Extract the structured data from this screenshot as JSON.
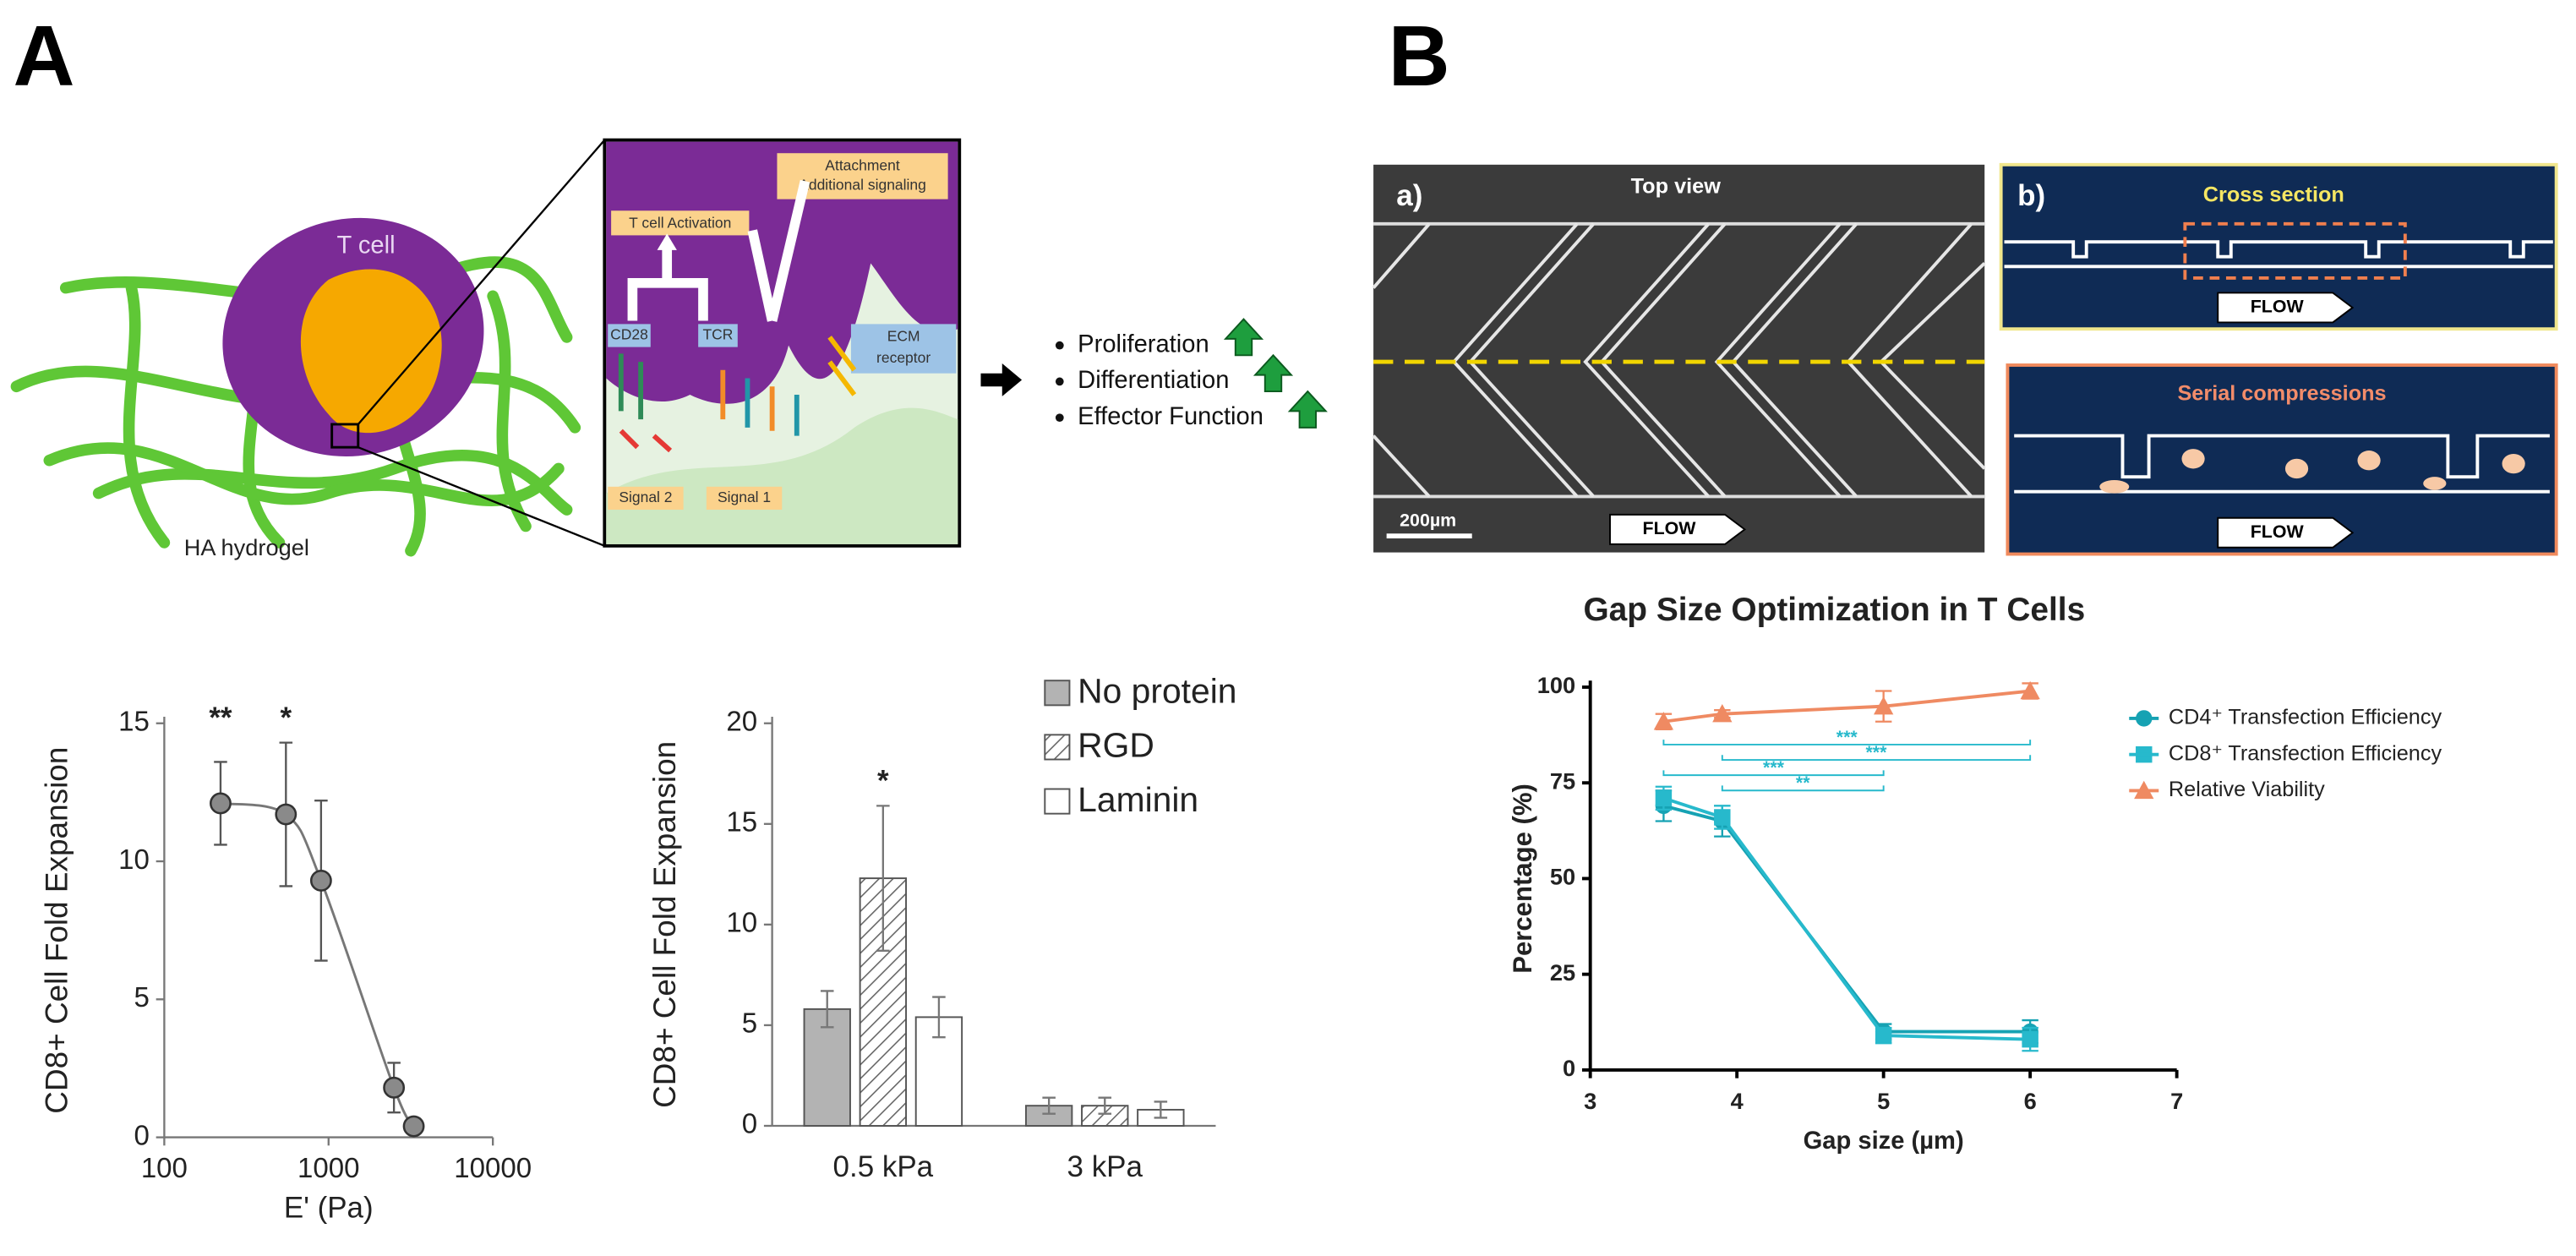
{
  "panel_labels": [
    "A",
    "B"
  ],
  "diagram_a": {
    "cell": "T cell",
    "gel": "HA hydrogel",
    "inset": {
      "attachment": [
        "Attachment",
        "Additional signaling"
      ],
      "activation": "T cell Activation",
      "cd28": "CD28",
      "tcr": "TCR",
      "ecm": [
        "ECM",
        "receptor"
      ],
      "signal2": "Signal 2",
      "signal1": "Signal 1"
    },
    "outcomes": [
      "Proliferation",
      "Differentiation",
      "Effector Function"
    ]
  },
  "diagram_b": {
    "top": {
      "label": "a)",
      "title": "Top view",
      "scale": "200µm",
      "flow": "FLOW"
    },
    "cross": {
      "label": "b)",
      "title": "Cross section",
      "flow": "FLOW"
    },
    "serial": {
      "title": "Serial compressions",
      "flow": "FLOW"
    }
  },
  "chart_data": [
    {
      "type": "scatter",
      "x_label": "E' (Pa)",
      "y_label": "CD8+ Cell Fold Expansion",
      "x": [
        220,
        550,
        900,
        2500,
        3300
      ],
      "values": [
        12.1,
        11.7,
        9.3,
        1.8,
        0.4
      ],
      "errors": [
        1.5,
        2.6,
        2.9,
        0.9,
        0
      ],
      "color": "#8a8a8a",
      "line_color": "#777777",
      "log_x": true,
      "xlim": [
        100,
        10000
      ],
      "xticks": [
        100,
        1000,
        10000
      ],
      "ylim": [
        0,
        15
      ],
      "yticks": [
        0,
        5,
        10,
        15
      ],
      "annotations": [
        {
          "text": "**",
          "x": 220
        },
        {
          "text": "*",
          "x": 550
        }
      ]
    },
    {
      "type": "bar",
      "y_label": "CD8+ Cell Fold Expansion",
      "categories": [
        "0.5 kPa",
        "3 kPa"
      ],
      "series": [
        {
          "name": "No protein",
          "color": "#b3b3b3",
          "values": [
            5.8,
            1.0
          ],
          "errors": [
            0.9,
            0.4
          ]
        },
        {
          "name": "RGD",
          "color": "#ffffff",
          "hatch": true,
          "values": [
            12.3,
            1.0
          ],
          "errors": [
            3.6,
            0.4
          ]
        },
        {
          "name": "Laminin",
          "color": "#ffffff",
          "values": [
            5.4,
            0.8
          ],
          "errors": [
            1.0,
            0.4
          ]
        }
      ],
      "ylim": [
        0,
        20
      ],
      "yticks": [
        0,
        5,
        10,
        15,
        20
      ],
      "annotations": [
        {
          "text": "*",
          "category": 0,
          "series": 1
        }
      ]
    },
    {
      "type": "line",
      "title": "Gap Size Optimization in T Cells",
      "x_label": "Gap size (µm)",
      "y_label": "Percentage (%)",
      "x": [
        3.5,
        3.9,
        5,
        6
      ],
      "series": [
        {
          "name": "CD4⁺ Transfection Efficiency",
          "color": "#16a2b3",
          "marker": "circle",
          "values": [
            69,
            65,
            10,
            10
          ],
          "errors": [
            4,
            4,
            2,
            3
          ]
        },
        {
          "name": "CD8⁺ Transfection Efficiency",
          "color": "#27b9cc",
          "marker": "square",
          "values": [
            71,
            66,
            9,
            8
          ],
          "errors": [
            3,
            3,
            2,
            3
          ]
        },
        {
          "name": "Relative Viability",
          "color": "#ef8a62",
          "marker": "triangle",
          "values": [
            91,
            93,
            95,
            99
          ],
          "errors": [
            2,
            1,
            4,
            2
          ]
        }
      ],
      "xlim": [
        3,
        7
      ],
      "xticks": [
        3,
        4,
        5,
        6,
        7
      ],
      "ylim": [
        0,
        100
      ],
      "yticks": [
        0,
        25,
        50,
        75,
        100
      ],
      "annotations": [
        {
          "text": "***",
          "x": [
            3.5,
            6
          ],
          "y": 85
        },
        {
          "text": "***",
          "x": [
            3.9,
            6
          ],
          "y": 81
        },
        {
          "text": "***",
          "x": [
            3.5,
            5
          ],
          "y": 77
        },
        {
          "text": "**",
          "x": [
            3.9,
            5
          ],
          "y": 73
        }
      ]
    }
  ]
}
